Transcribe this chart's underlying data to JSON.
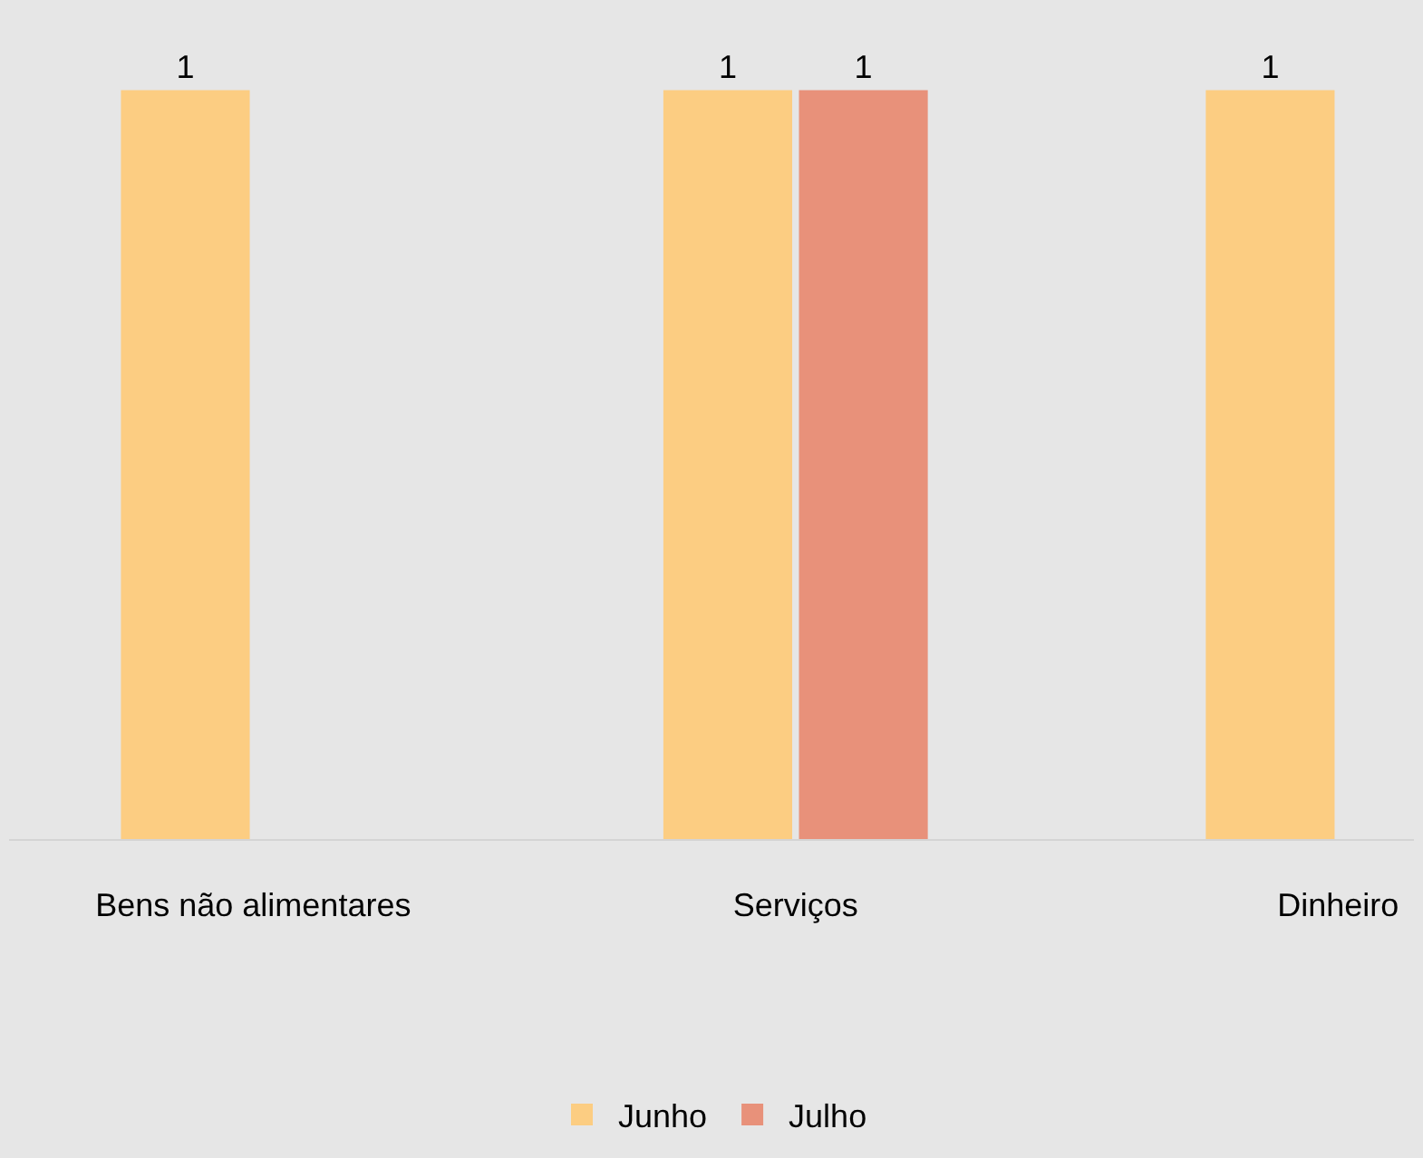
{
  "chart_data": {
    "type": "bar",
    "categories": [
      "Bens não alimentares",
      "Serviços",
      "Dinheiro"
    ],
    "series": [
      {
        "name": "Junho",
        "color": "#fccd82",
        "values": [
          1,
          1,
          1
        ]
      },
      {
        "name": "Julho",
        "color": "#e8917a",
        "values": [
          null,
          1,
          null
        ]
      }
    ],
    "data_labels": true,
    "grid": false,
    "legend": "bottom"
  }
}
